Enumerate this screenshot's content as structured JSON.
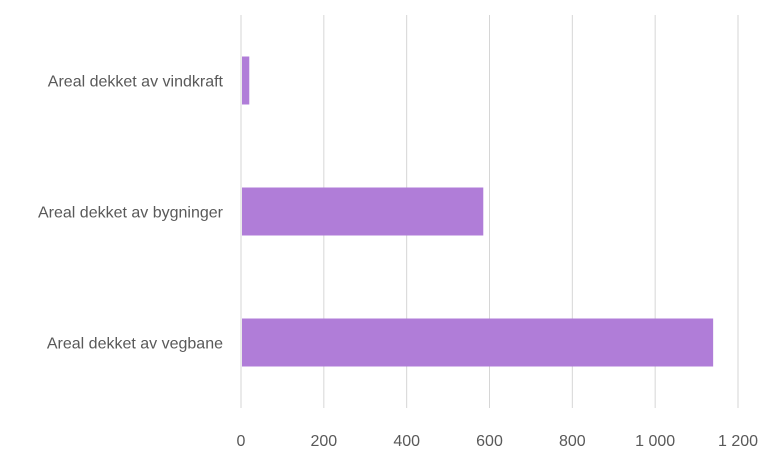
{
  "chart_data": {
    "type": "bar",
    "orientation": "horizontal",
    "categories": [
      "Areal dekket av vindkraft",
      "Areal dekket av bygninger",
      "Areal dekket av vegbane"
    ],
    "values": [
      20,
      585,
      1140
    ],
    "x_ticks": [
      "0",
      "200",
      "400",
      "600",
      "800",
      "1 000",
      "1 200"
    ],
    "xlim": [
      0,
      1200
    ],
    "grid": true,
    "bar_color": "#b07dd8",
    "grid_color": "#d6d6d6",
    "text_color": "#595959"
  }
}
